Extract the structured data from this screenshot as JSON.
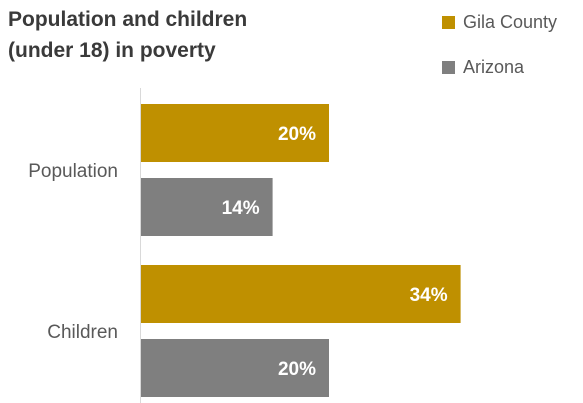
{
  "chart_data": {
    "type": "bar",
    "orientation": "horizontal",
    "title_lines": [
      "Population and children",
      "(under 18) in poverty"
    ],
    "categories": [
      "Population",
      "Children"
    ],
    "series": [
      {
        "name": "Gila County",
        "values": [
          20,
          34
        ],
        "labels": [
          "20%",
          "34%"
        ],
        "color": "#bf9000"
      },
      {
        "name": "Arizona",
        "values": [
          14,
          20
        ],
        "labels": [
          "14%",
          "20%"
        ],
        "color": "#7f7f7f"
      }
    ],
    "xlim": [
      0,
      40
    ],
    "grid": false,
    "legend_position": "top-right",
    "data_label_color": "#ffffff"
  }
}
